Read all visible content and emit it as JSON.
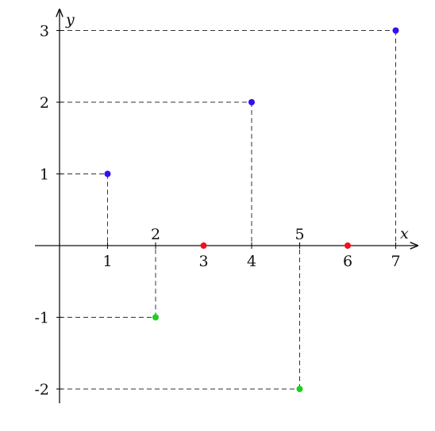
{
  "chart_data": {
    "type": "scatter",
    "xlabel": "x",
    "ylabel": "y",
    "xlim": [
      0,
      7
    ],
    "ylim": [
      -2,
      3
    ],
    "grid": false,
    "x_ticks": [
      {
        "value": 1,
        "label": "1",
        "position": "below"
      },
      {
        "value": 2,
        "label": "2",
        "position": "above"
      },
      {
        "value": 3,
        "label": "3",
        "position": "below"
      },
      {
        "value": 4,
        "label": "4",
        "position": "below"
      },
      {
        "value": 5,
        "label": "5",
        "position": "above"
      },
      {
        "value": 6,
        "label": "6",
        "position": "below"
      },
      {
        "value": 7,
        "label": "7",
        "position": "below"
      }
    ],
    "y_ticks": [
      {
        "value": 3,
        "label": "3"
      },
      {
        "value": 2,
        "label": "2"
      },
      {
        "value": 1,
        "label": "1"
      },
      {
        "value": -1,
        "label": "-1"
      },
      {
        "value": -2,
        "label": "-2"
      }
    ],
    "series": [
      {
        "color": "#3311ee",
        "points": [
          {
            "x": 1,
            "y": 1
          },
          {
            "x": 4,
            "y": 2
          },
          {
            "x": 7,
            "y": 3
          }
        ]
      },
      {
        "color": "#22cc22",
        "points": [
          {
            "x": 2,
            "y": -1
          },
          {
            "x": 5,
            "y": -2
          }
        ]
      },
      {
        "color": "#ee1122",
        "points": [
          {
            "x": 3,
            "y": 0
          },
          {
            "x": 6,
            "y": 0
          }
        ]
      }
    ]
  }
}
